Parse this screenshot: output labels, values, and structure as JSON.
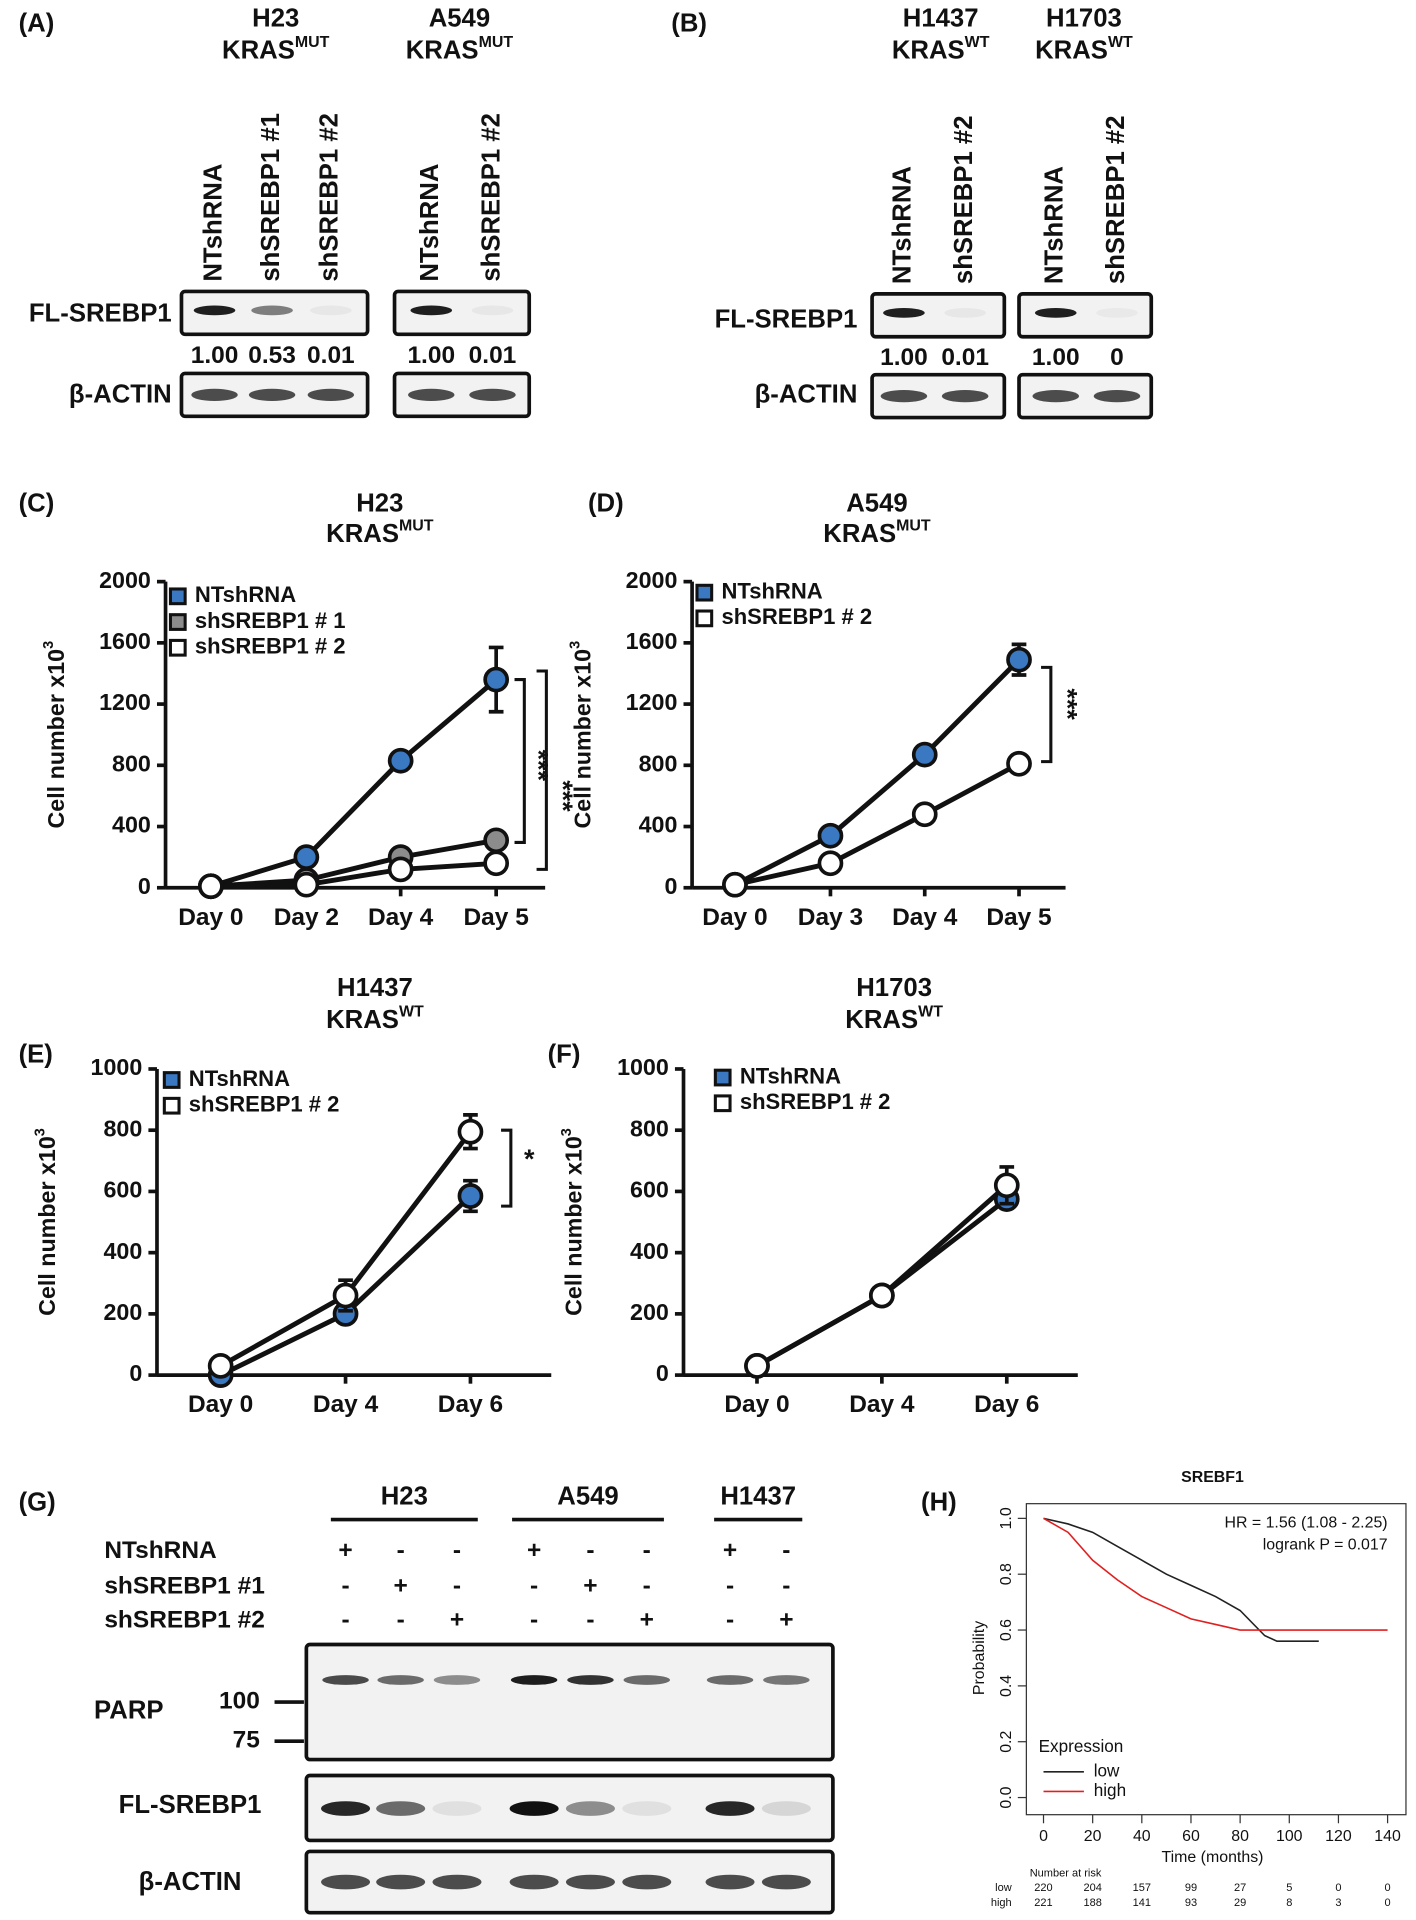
{
  "figure": {
    "panel_labels": [
      "(A)",
      "(B)",
      "(C)",
      "(D)",
      "(E)",
      "(F)",
      "(G)",
      "(H)"
    ]
  },
  "blots": [
    {
      "row_labels": [
        "FL-SREBP1",
        "β-ACTIN"
      ],
      "groups": [
        {
          "cell": "H23",
          "genotype": "KRAS",
          "genotype_sup": "MUT",
          "lanes": [
            "NTshRNA",
            "shSREBP1 #1",
            "shSREBP1 #2"
          ],
          "quant": [
            "1.00",
            "0.53",
            "0.01"
          ]
        },
        {
          "cell": "A549",
          "genotype": "KRAS",
          "genotype_sup": "MUT",
          "lanes": [
            "NTshRNA",
            "shSREBP1 #2"
          ],
          "quant": [
            "1.00",
            "0.01"
          ]
        }
      ]
    },
    {
      "row_labels": [
        "FL-SREBP1",
        "β-ACTIN"
      ],
      "groups": [
        {
          "cell": "H1437",
          "genotype": "KRAS",
          "genotype_sup": "WT",
          "lanes": [
            "NTshRNA",
            "shSREBP1 #2"
          ],
          "quant": [
            "1.00",
            "0.01"
          ]
        },
        {
          "cell": "H1703",
          "genotype": "KRAS",
          "genotype_sup": "WT",
          "lanes": [
            "NTshRNA",
            "shSREBP1 #2"
          ],
          "quant": [
            "1.00",
            "0"
          ]
        }
      ]
    }
  ],
  "blot_g": {
    "groups": [
      "H23",
      "A549",
      "H1437"
    ],
    "conditions": [
      {
        "name": "NTshRNA",
        "signs": [
          "+",
          "-",
          "-",
          "+",
          "-",
          "-",
          "+",
          "-"
        ]
      },
      {
        "name": "shSREBP1 #1",
        "signs": [
          "-",
          "+",
          "-",
          "-",
          "+",
          "-",
          "-",
          "-"
        ]
      },
      {
        "name": "shSREBP1 #2",
        "signs": [
          "-",
          "-",
          "+",
          "-",
          "-",
          "+",
          "-",
          "+"
        ]
      }
    ],
    "markers": [
      100,
      75
    ],
    "rows": [
      "PARP",
      "FL-SREBP1",
      "β-ACTIN"
    ]
  },
  "chart_data": [
    {
      "type": "line",
      "title": "H23",
      "genotype": "KRAS",
      "genotype_sup": "MUT",
      "y_label": "Cell number x10",
      "y_label_sup": "3",
      "categories": [
        "Day 0",
        "Day 2",
        "Day 4",
        "Day 5"
      ],
      "ylim": [
        0,
        2000
      ],
      "yticks": [
        0,
        400,
        800,
        1200,
        1600,
        2000
      ],
      "series": [
        {
          "name": "NTshRNA",
          "color": "#3a78c2",
          "values": [
            10,
            200,
            830,
            1360
          ],
          "errors": [
            null,
            null,
            null,
            210
          ]
        },
        {
          "name": "shSREBP1 # 1",
          "color": "#8c8c8c",
          "values": [
            10,
            50,
            200,
            310
          ],
          "errors": [
            null,
            null,
            null,
            null
          ]
        },
        {
          "name": "shSREBP1 # 2",
          "color": "#ffffff",
          "values": [
            10,
            20,
            120,
            160
          ],
          "errors": [
            null,
            null,
            null,
            null
          ]
        }
      ],
      "annotations": [
        "***",
        "***"
      ]
    },
    {
      "type": "line",
      "title": "A549",
      "genotype": "KRAS",
      "genotype_sup": "MUT",
      "y_label": "Cell number x10",
      "y_label_sup": "3",
      "categories": [
        "Day 0",
        "Day 3",
        "Day 4",
        "Day 5"
      ],
      "ylim": [
        0,
        2000
      ],
      "yticks": [
        0,
        400,
        800,
        1200,
        1600,
        2000
      ],
      "series": [
        {
          "name": "NTshRNA",
          "color": "#3a78c2",
          "values": [
            20,
            340,
            870,
            1490
          ],
          "errors": [
            null,
            null,
            null,
            100
          ]
        },
        {
          "name": "shSREBP1 # 2",
          "color": "#ffffff",
          "values": [
            20,
            160,
            480,
            810
          ],
          "errors": [
            null,
            null,
            null,
            null
          ]
        }
      ],
      "annotations": [
        "***"
      ]
    },
    {
      "type": "line",
      "title": "H1437",
      "genotype": "KRAS",
      "genotype_sup": "WT",
      "y_label": "Cell number x10",
      "y_label_sup": "3",
      "categories": [
        "Day 0",
        "Day 4",
        "Day 6"
      ],
      "ylim": [
        0,
        1000
      ],
      "yticks": [
        0,
        200,
        400,
        600,
        800,
        1000
      ],
      "series": [
        {
          "name": "NTshRNA",
          "color": "#3a78c2",
          "values": [
            0,
            200,
            585
          ],
          "errors": [
            null,
            null,
            50
          ]
        },
        {
          "name": "shSREBP1 # 2",
          "color": "#ffffff",
          "values": [
            30,
            260,
            795
          ],
          "errors": [
            null,
            50,
            55
          ]
        }
      ],
      "annotations": [
        "*"
      ]
    },
    {
      "type": "line",
      "title": "H1703",
      "genotype": "KRAS",
      "genotype_sup": "WT",
      "y_label": "Cell number x10",
      "y_label_sup": "3",
      "categories": [
        "Day 0",
        "Day 4",
        "Day 6"
      ],
      "ylim": [
        0,
        1000
      ],
      "yticks": [
        0,
        200,
        400,
        600,
        800,
        1000
      ],
      "series": [
        {
          "name": "NTshRNA",
          "color": "#3a78c2",
          "values": [
            30,
            260,
            575
          ],
          "errors": [
            null,
            null,
            null
          ]
        },
        {
          "name": "shSREBP1 # 2",
          "color": "#ffffff",
          "values": [
            30,
            260,
            620
          ],
          "errors": [
            null,
            null,
            60
          ]
        }
      ],
      "annotations": []
    },
    {
      "type": "km",
      "title": "SREBF1",
      "x_label": "Time (months)",
      "y_label": "Probability",
      "xlim": [
        0,
        140
      ],
      "xticks": [
        0,
        20,
        40,
        60,
        80,
        100,
        120,
        140
      ],
      "ylim": [
        0,
        1
      ],
      "yticks": [
        {
          "value": 0,
          "label": "0.0"
        },
        {
          "value": 0.2,
          "label": "0.2"
        },
        {
          "value": 0.4,
          "label": "0.4"
        },
        {
          "value": 0.6,
          "label": "0.6"
        },
        {
          "value": 0.8,
          "label": "0.8"
        },
        {
          "value": 1,
          "label": "1.0"
        }
      ],
      "annotations": [
        "HR = 1.56 (1.08 - 2.25)",
        "logrank P = 0.017"
      ],
      "legend_title": "Expression",
      "at_risk_title": "Number at risk",
      "series": [
        {
          "name": "low",
          "color": "#222222",
          "x": [
            0,
            10,
            20,
            30,
            40,
            50,
            60,
            70,
            80,
            90,
            95,
            112
          ],
          "values": [
            1,
            0.98,
            0.95,
            0.9,
            0.85,
            0.8,
            0.76,
            0.72,
            0.67,
            0.58,
            0.56,
            0.56
          ],
          "at_risk": [
            220,
            204,
            157,
            99,
            27,
            5,
            0,
            0
          ]
        },
        {
          "name": "high",
          "color": "#e02020",
          "x": [
            0,
            10,
            20,
            30,
            40,
            50,
            60,
            70,
            80,
            90,
            140
          ],
          "values": [
            1,
            0.95,
            0.85,
            0.78,
            0.72,
            0.68,
            0.64,
            0.62,
            0.6,
            0.6,
            0.6
          ],
          "at_risk": [
            221,
            188,
            141,
            93,
            29,
            8,
            3,
            0
          ]
        }
      ]
    }
  ]
}
